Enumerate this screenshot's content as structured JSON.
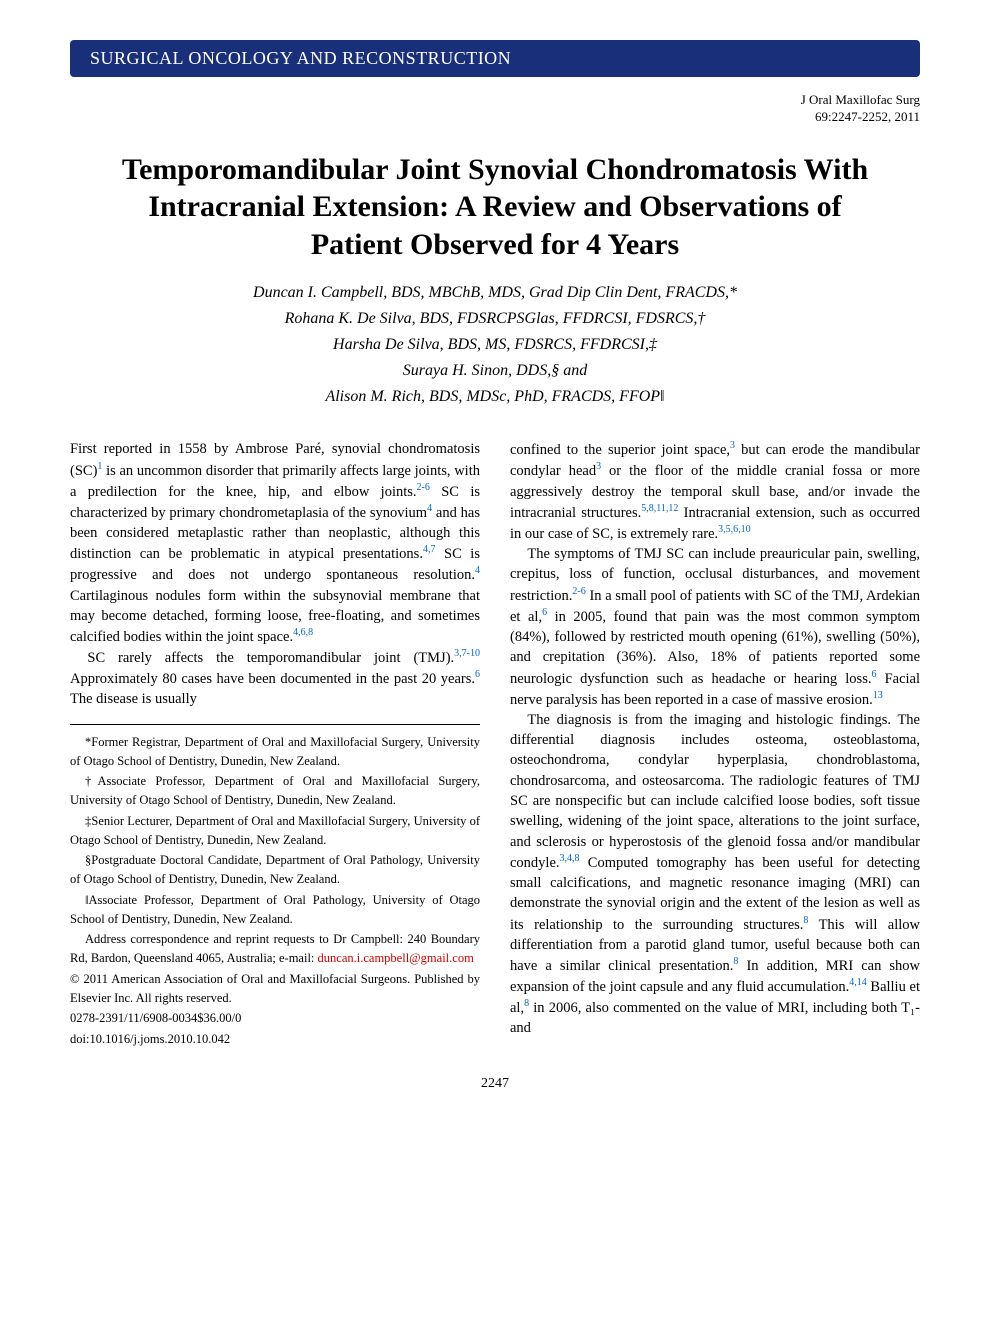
{
  "section_header": "SURGICAL ONCOLOGY AND RECONSTRUCTION",
  "journal": {
    "name": "J Oral Maxillofac Surg",
    "citation": "69:2247-2252, 2011"
  },
  "title": "Temporomandibular Joint Synovial Chondromatosis With Intracranial Extension: A Review and Observations of Patient Observed for 4 Years",
  "authors": [
    "Duncan I. Campbell, BDS, MBChB, MDS, Grad Dip Clin Dent, FRACDS,*",
    "Rohana K. De Silva, BDS, FDSRCPSGlas, FFDRCSI, FDSRCS,†",
    "Harsha De Silva, BDS, MS, FDSRCS, FFDRCSI,‡",
    "Suraya H. Sinon, DDS,§ and",
    "Alison M. Rich, BDS, MDSc, PhD, FRACDS, FFOP‖"
  ],
  "left_col": {
    "p1a": "First reported in 1558 by Ambrose Paré, synovial chondromatosis (SC)",
    "p1b": " is an uncommon disorder that primarily affects large joints, with a predilection for the knee, hip, and elbow joints.",
    "p1c": " SC is characterized by primary chondrometaplasia of the synovium",
    "p1d": " and has been considered metaplastic rather than neoplastic, although this distinction can be problematic in atypical presentations.",
    "p1e": " SC is progressive and does not undergo spontaneous resolution.",
    "p1f": " Cartilaginous nodules form within the subsynovial membrane that may become detached, forming loose, free-floating, and sometimes calcified bodies within the joint space.",
    "p2a": "SC rarely affects the temporomandibular joint (TMJ).",
    "p2b": " Approximately 80 cases have been documented in the past 20 years.",
    "p2c": " The disease is usually"
  },
  "right_col": {
    "p1a": "confined to the superior joint space,",
    "p1b": " but can erode the mandibular condylar head",
    "p1c": " or the floor of the middle cranial fossa or more aggressively destroy the temporal skull base, and/or invade the intracranial structures.",
    "p1d": " Intracranial extension, such as occurred in our case of SC, is extremely rare.",
    "p2a": "The symptoms of TMJ SC can include preauricular pain, swelling, crepitus, loss of function, occlusal disturbances, and movement restriction.",
    "p2b": " In a small pool of patients with SC of the TMJ, Ardekian et al,",
    "p2c": " in 2005, found that pain was the most common symptom (84%), followed by restricted mouth opening (61%), swelling (50%), and crepitation (36%). Also, 18% of patients reported some neurologic dysfunction such as headache or hearing loss.",
    "p2d": " Facial nerve paralysis has been reported in a case of massive erosion.",
    "p3a": "The diagnosis is from the imaging and histologic findings. The differential diagnosis includes osteoma, osteoblastoma, osteochondroma, condylar hyperplasia, chondroblastoma, chondrosarcoma, and osteosarcoma. The radiologic features of TMJ SC are nonspecific but can include calcified loose bodies, soft tissue swelling, widening of the joint space, alterations to the joint surface, and sclerosis or hyperostosis of the glenoid fossa and/or mandibular condyle.",
    "p3b": " Computed tomography has been useful for detecting small calcifications, and magnetic resonance imaging (MRI) can demonstrate the synovial origin and the extent of the lesion as well as its relationship to the surrounding structures.",
    "p3c": " This will allow differentiation from a parotid gland tumor, useful because both can have a similar clinical presentation.",
    "p3d": " In addition, MRI can show expansion of the joint capsule and any fluid accumulation.",
    "p3e": " Balliu et al,",
    "p3f": " in 2006, also commented on the value of MRI, including both T₁- and"
  },
  "refs": {
    "r1": "1",
    "r26": "2-6",
    "r4": "4",
    "r47": "4,7",
    "r468": "4,6,8",
    "r3710": "3,7-10",
    "r6": "6",
    "r3": "3",
    "r581112": "5,8,11,12",
    "r35610": "3,5,6,10",
    "r13": "13",
    "r348": "3,4,8",
    "r8": "8",
    "r414": "4,14"
  },
  "affiliations": {
    "a1": "*Former Registrar, Department of Oral and Maxillofacial Surgery, University of Otago School of Dentistry, Dunedin, New Zealand.",
    "a2": "†Associate Professor, Department of Oral and Maxillofacial Surgery, University of Otago School of Dentistry, Dunedin, New Zealand.",
    "a3": "‡Senior Lecturer, Department of Oral and Maxillofacial Surgery, University of Otago School of Dentistry, Dunedin, New Zealand.",
    "a4": "§Postgraduate Doctoral Candidate, Department of Oral Pathology, University of Otago School of Dentistry, Dunedin, New Zealand.",
    "a5": "‖Associate Professor, Department of Oral Pathology, University of Otago School of Dentistry, Dunedin, New Zealand.",
    "a6a": "Address correspondence and reprint requests to Dr Campbell: 240 Boundary Rd, Bardon, Queensland 4065, Australia; e-mail: ",
    "a6email": "duncan.i.campbell@gmail.com",
    "a7": "© 2011 American Association of Oral and Maxillofacial Surgeons. Published by Elsevier Inc. All rights reserved.",
    "a8": "0278-2391/11/6908-0034$36.00/0",
    "a9": "doi:10.1016/j.joms.2010.10.042"
  },
  "page_number": "2247",
  "colors": {
    "header_bg": "#1a2f7a",
    "header_text": "#ffffff",
    "body_text": "#000000",
    "ref_color": "#0066cc",
    "email_color": "#cc0000",
    "background": "#ffffff"
  }
}
